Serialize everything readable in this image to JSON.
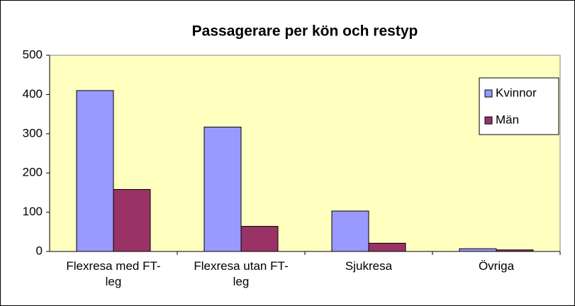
{
  "chart_data": {
    "type": "bar",
    "title": "Passagerare per kön och restyp",
    "categories": [
      "Flexresa med FT-leg",
      "Flexresa utan FT-leg",
      "Sjukresa",
      "Övriga"
    ],
    "series": [
      {
        "name": "Kvinnor",
        "color": "#9999ff",
        "values": [
          410,
          317,
          103,
          7
        ]
      },
      {
        "name": "Män",
        "color": "#993366",
        "values": [
          158,
          64,
          21,
          4
        ]
      }
    ],
    "ylim": [
      0,
      500
    ],
    "yticks": [
      0,
      100,
      200,
      300,
      400,
      500
    ],
    "grid": false,
    "legend": "right"
  }
}
